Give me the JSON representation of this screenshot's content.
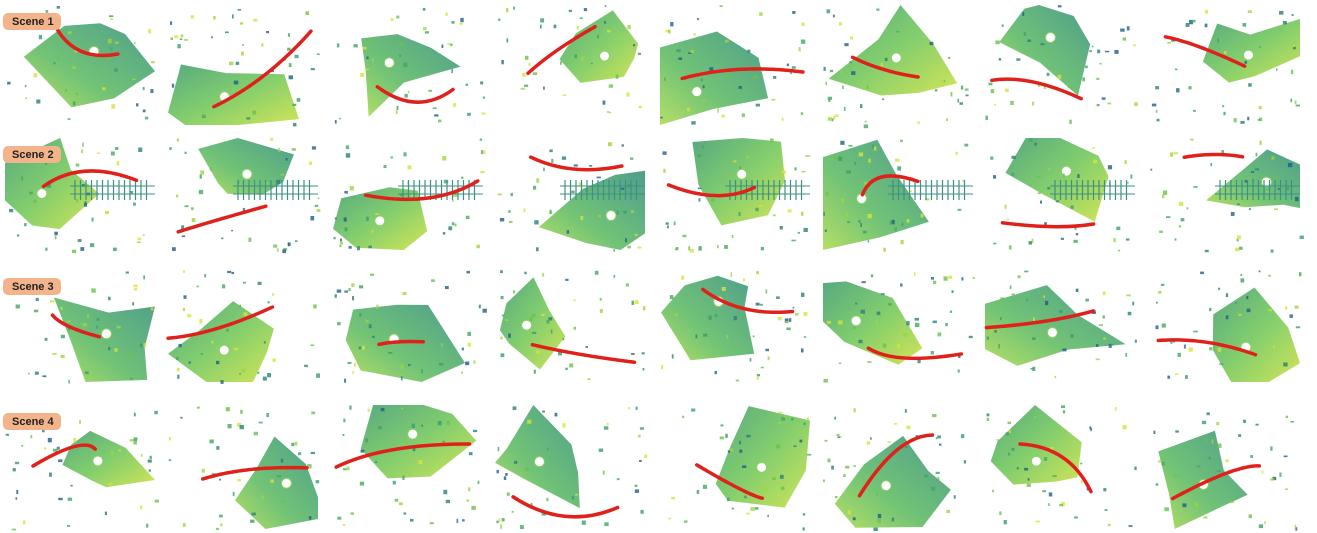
{
  "scenes": [
    {
      "label": "Scene 1"
    },
    {
      "label": "Scene 2"
    },
    {
      "label": "Scene 3"
    },
    {
      "label": "Scene 4"
    }
  ]
}
